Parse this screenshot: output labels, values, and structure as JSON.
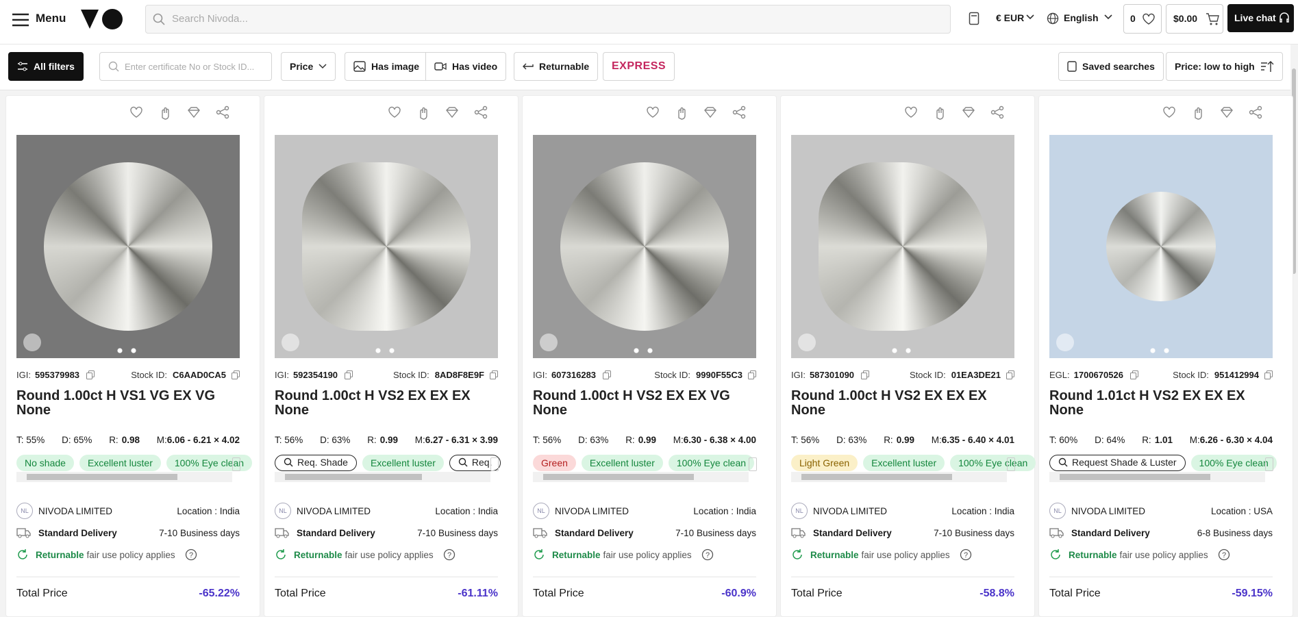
{
  "header": {
    "menu": "Menu",
    "search_placeholder": "Search Nivoda...",
    "currency": "€ EUR",
    "language": "English",
    "wishlist_count": "0",
    "cart_total": "$0.00",
    "live_chat": "Live chat"
  },
  "filters": {
    "all_filters": "All filters",
    "certificate_placeholder": "Enter certificate No or Stock ID...",
    "price": "Price",
    "has_image": "Has image",
    "has_video": "Has video",
    "returnable": "Returnable",
    "express": "EXPRESS",
    "saved_searches": "Saved searches",
    "sort": "Price: low to high"
  },
  "cards": [
    {
      "lab": "IGI:",
      "cert": "595379983",
      "stock_label": "Stock ID:",
      "stock_id": "C6AAD0CA5",
      "title": "Round 1.00ct H VS1 VG EX VG None",
      "table": "T: 55%",
      "depth": "D: 65%",
      "ratio_label": "R:",
      "ratio": "0.98",
      "measure_label": "M:",
      "measurements": "6.06 - 6.21 × 4.02",
      "image_bg": "#777777",
      "tags": [
        {
          "text": "No shade",
          "style": "green"
        },
        {
          "text": "Excellent luster",
          "style": "green"
        },
        {
          "text": "100% Eye clean",
          "style": "green"
        }
      ],
      "supplier_initials": "NL",
      "supplier": "NIVODA LIMITED",
      "location": "Location : India",
      "delivery": "Standard Delivery",
      "delivery_time": "7-10 Business days",
      "returnable": "Returnable",
      "policy": "fair use policy applies",
      "total_label": "Total Price",
      "discount": "-65.22%"
    },
    {
      "lab": "IGI:",
      "cert": "592354190",
      "stock_label": "Stock ID:",
      "stock_id": "8AD8F8E9F",
      "title": "Round 1.00ct H VS2 EX EX EX None",
      "table": "T: 56%",
      "depth": "D: 63%",
      "ratio_label": "R:",
      "ratio": "0.99",
      "measure_label": "M:",
      "measurements": "6.27 - 6.31 × 3.99",
      "image_bg": "#c4c4c4",
      "tags": [
        {
          "text": "Req. Shade",
          "style": "outline"
        },
        {
          "text": "Excellent luster",
          "style": "green"
        },
        {
          "text": "Req.",
          "style": "outline"
        }
      ],
      "supplier_initials": "NL",
      "supplier": "NIVODA LIMITED",
      "location": "Location : India",
      "delivery": "Standard Delivery",
      "delivery_time": "7-10 Business days",
      "returnable": "Returnable",
      "policy": "fair use policy applies",
      "total_label": "Total Price",
      "discount": "-61.11%"
    },
    {
      "lab": "IGI:",
      "cert": "607316283",
      "stock_label": "Stock ID:",
      "stock_id": "9990F55C3",
      "title": "Round 1.00ct H VS2 EX EX VG None",
      "table": "T: 56%",
      "depth": "D: 63%",
      "ratio_label": "R:",
      "ratio": "0.99",
      "measure_label": "M:",
      "measurements": "6.30 - 6.38 × 4.00",
      "image_bg": "#9a9a9a",
      "tags": [
        {
          "text": "Green",
          "style": "red"
        },
        {
          "text": "Excellent luster",
          "style": "green"
        },
        {
          "text": "100% Eye clean",
          "style": "green"
        }
      ],
      "supplier_initials": "NL",
      "supplier": "NIVODA LIMITED",
      "location": "Location : India",
      "delivery": "Standard Delivery",
      "delivery_time": "7-10 Business days",
      "returnable": "Returnable",
      "policy": "fair use policy applies",
      "total_label": "Total Price",
      "discount": "-60.9%"
    },
    {
      "lab": "IGI:",
      "cert": "587301090",
      "stock_label": "Stock ID:",
      "stock_id": "01EA3DE21",
      "title": "Round 1.00ct H VS2 EX EX EX None",
      "table": "T: 56%",
      "depth": "D: 63%",
      "ratio_label": "R:",
      "ratio": "0.99",
      "measure_label": "M:",
      "measurements": "6.35 - 6.40 × 4.01",
      "image_bg": "#c6c6c6",
      "tags": [
        {
          "text": "Light Green",
          "style": "yellow"
        },
        {
          "text": "Excellent luster",
          "style": "green"
        },
        {
          "text": "100% Eye clean",
          "style": "green"
        }
      ],
      "supplier_initials": "NL",
      "supplier": "NIVODA LIMITED",
      "location": "Location : India",
      "delivery": "Standard Delivery",
      "delivery_time": "7-10 Business days",
      "returnable": "Returnable",
      "policy": "fair use policy applies",
      "total_label": "Total Price",
      "discount": "-58.8%"
    },
    {
      "lab": "EGL:",
      "cert": "1700670526",
      "stock_label": "Stock ID:",
      "stock_id": "951412994",
      "title": "Round 1.01ct H VS2 EX EX EX None",
      "table": "T: 60%",
      "depth": "D: 64%",
      "ratio_label": "R:",
      "ratio": "1.01",
      "measure_label": "M:",
      "measurements": "6.26 - 6.30 × 4.04",
      "image_bg": "#c5d5e6",
      "tags": [
        {
          "text": "Request Shade & Luster",
          "style": "outline"
        },
        {
          "text": "100% Eye clean",
          "style": "green"
        }
      ],
      "supplier_initials": "NL",
      "supplier": "NIVODA LIMITED",
      "location": "Location : USA",
      "delivery": "Standard Delivery",
      "delivery_time": "6-8 Business days",
      "returnable": "Returnable",
      "policy": "fair use policy applies",
      "total_label": "Total Price",
      "discount": "-59.15%"
    }
  ]
}
